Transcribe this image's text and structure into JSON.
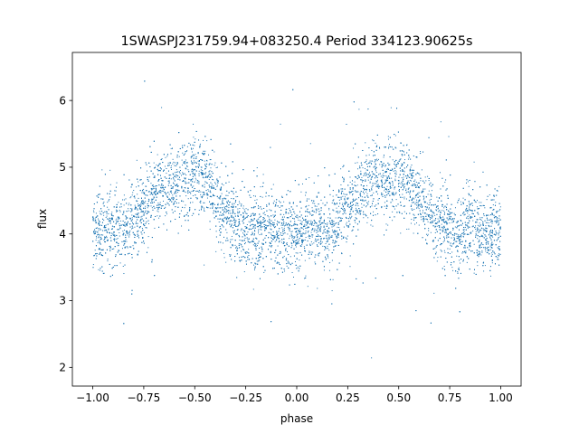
{
  "chart_data": {
    "type": "scatter",
    "title": "1SWASPJ231759.94+083250.4 Period 334123.90625s",
    "xlabel": "phase",
    "ylabel": "flux",
    "xlim": [
      -1.1,
      1.1
    ],
    "ylim": [
      1.72,
      6.72
    ],
    "x_ticks": [
      {
        "value": -1.0,
        "label": "−1.00"
      },
      {
        "value": -0.75,
        "label": "−0.75"
      },
      {
        "value": -0.5,
        "label": "−0.50"
      },
      {
        "value": -0.25,
        "label": "−0.25"
      },
      {
        "value": 0.0,
        "label": "0.00"
      },
      {
        "value": 0.25,
        "label": "0.25"
      },
      {
        "value": 0.5,
        "label": "0.50"
      },
      {
        "value": 0.75,
        "label": "0.75"
      },
      {
        "value": 1.0,
        "label": "1.00"
      }
    ],
    "y_ticks": [
      {
        "value": 2,
        "label": "2"
      },
      {
        "value": 3,
        "label": "3"
      },
      {
        "value": 4,
        "label": "4"
      },
      {
        "value": 5,
        "label": "5"
      },
      {
        "value": 6,
        "label": "6"
      }
    ],
    "grid": false,
    "marker_color": "#1f77b4",
    "series": [
      {
        "phase": [
          -1.0,
          -0.95,
          -0.9,
          -0.85,
          -0.8,
          -0.75,
          -0.7,
          -0.65,
          -0.6,
          -0.55,
          -0.5,
          -0.45,
          -0.4,
          -0.35,
          -0.3,
          -0.25,
          -0.2,
          -0.15,
          -0.1,
          -0.05,
          0.0,
          0.05,
          0.1,
          0.15,
          0.2,
          0.25,
          0.3,
          0.35,
          0.4,
          0.45,
          0.5,
          0.55,
          0.6,
          0.65,
          0.7,
          0.75,
          0.8,
          0.85,
          0.9,
          0.95,
          1.0
        ],
        "flux": [
          4.05,
          4.05,
          4.1,
          4.0,
          4.2,
          4.4,
          4.6,
          4.75,
          4.8,
          4.8,
          4.9,
          4.8,
          4.55,
          4.3,
          4.15,
          4.05,
          4.05,
          4.1,
          4.0,
          4.0,
          4.05,
          4.05,
          4.1,
          4.0,
          4.2,
          4.4,
          4.6,
          4.75,
          4.8,
          4.8,
          4.9,
          4.8,
          4.55,
          4.3,
          4.15,
          4.05,
          4.05,
          4.1,
          4.0,
          4.0,
          4.05
        ]
      }
    ]
  }
}
